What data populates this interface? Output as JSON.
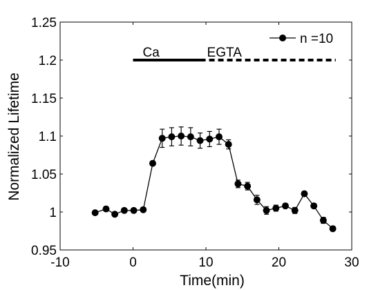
{
  "chart_data": {
    "type": "line",
    "xlabel": "Time(min)",
    "ylabel": "Normalized Lifetime",
    "xlim": [
      -10,
      30
    ],
    "ylim": [
      0.95,
      1.25
    ],
    "xticks": [
      "-10",
      "0",
      "10",
      "20",
      "30"
    ],
    "yticks": [
      "0.95",
      "1",
      "1.05",
      "1.1",
      "1.15",
      "1.2",
      "1.25"
    ],
    "grid": false,
    "legend_position": "top-right",
    "series": [
      {
        "name": "n =10",
        "color": "#000000",
        "marker": "circle",
        "x": [
          -5.2,
          -3.7,
          -2.5,
          -1.2,
          0.1,
          1.4,
          2.7,
          4.0,
          5.3,
          6.6,
          7.9,
          9.2,
          10.5,
          11.8,
          13.1,
          14.4,
          15.7,
          17.0,
          18.3,
          19.6,
          20.9,
          22.2,
          23.5,
          24.8,
          26.1,
          27.4
        ],
        "y": [
          0.999,
          1.004,
          0.997,
          1.002,
          1.002,
          1.003,
          1.064,
          1.097,
          1.099,
          1.1,
          1.099,
          1.094,
          1.096,
          1.099,
          1.089,
          1.037,
          1.034,
          1.016,
          1.002,
          1.005,
          1.008,
          1.002,
          1.024,
          1.008,
          0.989,
          0.978
        ],
        "errors": [
          0.002,
          0.003,
          0.002,
          0.002,
          0.002,
          0.002,
          0.003,
          0.012,
          0.012,
          0.012,
          0.012,
          0.01,
          0.01,
          0.01,
          0.006,
          0.005,
          0.005,
          0.006,
          0.005,
          0.004,
          0.003,
          0.004,
          0.003,
          0.003,
          0.004,
          0.003
        ]
      }
    ],
    "annotations": [
      {
        "label": "Ca",
        "style": "solid",
        "x_start": 0,
        "x_end": 9.2,
        "y": 1.2
      },
      {
        "label": "EGTA",
        "style": "dashed",
        "x_start": 9.2,
        "x_end": 27.8,
        "y": 1.2
      }
    ]
  }
}
